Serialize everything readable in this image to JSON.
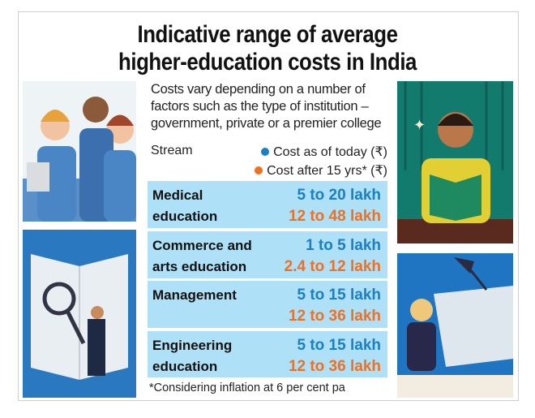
{
  "title": [
    "Indicative range of average",
    "higher-education costs in India"
  ],
  "intro": "Costs vary depending on a number of factors such as the type of institution – government, private or a premier college",
  "header": {
    "stream": "Stream",
    "today": "Cost as of today (₹)",
    "after": "Cost after 15 yrs* (₹)"
  },
  "colors": {
    "today": "#1b7fc4",
    "after": "#f07022",
    "row_bg": "#aee0f7"
  },
  "rows": [
    {
      "stream": [
        "Medical",
        "education"
      ],
      "today": "5 to 20 lakh",
      "after": "12 to 48 lakh"
    },
    {
      "stream": [
        "Commerce and",
        "arts education"
      ],
      "today": "1 to 5 lakh",
      "after": "2.4 to 12 lakh"
    },
    {
      "stream": [
        "Management",
        ""
      ],
      "today": "5 to 15 lakh",
      "after": "12 to 36 lakh"
    },
    {
      "stream": [
        "Engineering",
        "education"
      ],
      "today": "5 to 15 lakh",
      "after": "12 to 36 lakh"
    }
  ],
  "footnote": "*Considering inflation at 6 per cent pa"
}
